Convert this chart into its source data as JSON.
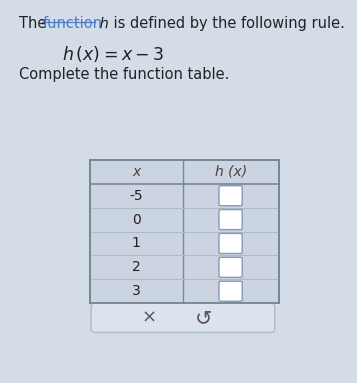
{
  "title_part1": "The ",
  "title_link": "function",
  "title_part2": " h̅ is defined by the following rule.",
  "formula": "h (x) = x − 3",
  "subtitle": "Complete the function table.",
  "col1_header": "x",
  "col2_header": "h (x)",
  "x_values": [
    "-5",
    "0",
    "1",
    "2",
    "3"
  ],
  "bg_color": "#d4dce8",
  "table_bg": "#ccd4e2",
  "input_box_color": "#ffffff",
  "input_box_border": "#8899bb",
  "text_color": "#222222",
  "link_color": "#4a7cc7",
  "header_text_color": "#444444",
  "bottom_bar_color": "#dce3ef",
  "bottom_bar_border": "#aabbcc",
  "row_line_color": "#aabbcc",
  "table_border_color": "#778899"
}
